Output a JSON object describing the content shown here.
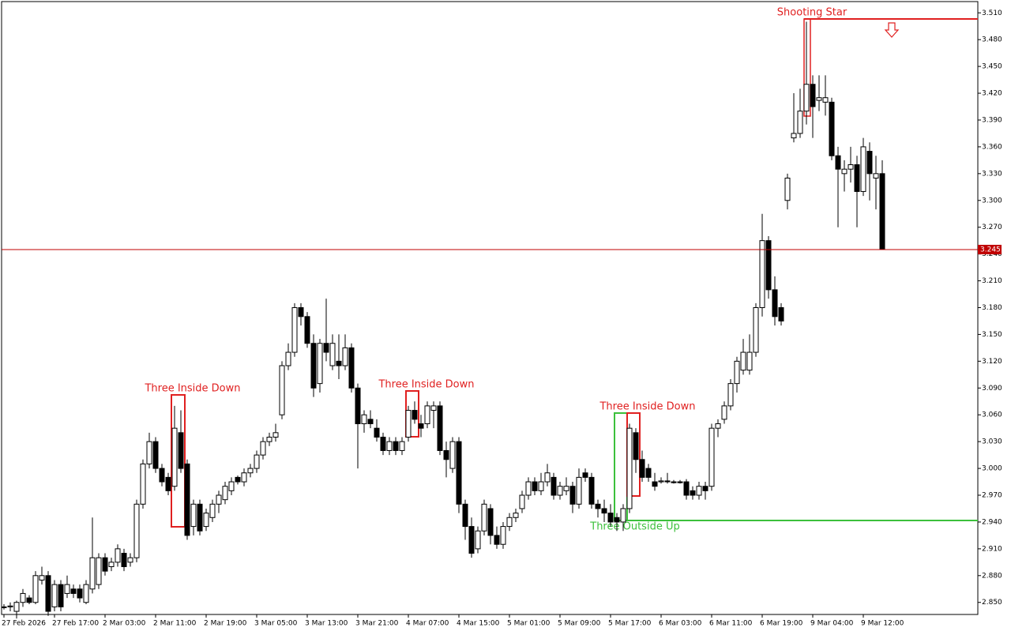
{
  "chart_data": {
    "type": "candlestick",
    "ylim": [
      2.8365,
      3.5226
    ],
    "yticks": [
      {
        "value": 2.85,
        "label": "2.850"
      },
      {
        "value": 2.88,
        "label": "2.880"
      },
      {
        "value": 2.91,
        "label": "2.910"
      },
      {
        "value": 2.94,
        "label": "2.940"
      },
      {
        "value": 2.97,
        "label": "2.970"
      },
      {
        "value": 3.0,
        "label": "3.000"
      },
      {
        "value": 3.03,
        "label": "3.030"
      },
      {
        "value": 3.06,
        "label": "3.060"
      },
      {
        "value": 3.09,
        "label": "3.090"
      },
      {
        "value": 3.12,
        "label": "3.120"
      },
      {
        "value": 3.15,
        "label": "3.150"
      },
      {
        "value": 3.18,
        "label": "3.180"
      },
      {
        "value": 3.21,
        "label": "3.210"
      },
      {
        "value": 3.24,
        "label": "3.240"
      },
      {
        "value": 3.27,
        "label": "3.270"
      },
      {
        "value": 3.3,
        "label": "3.300"
      },
      {
        "value": 3.33,
        "label": "3.330"
      },
      {
        "value": 3.36,
        "label": "3.360"
      },
      {
        "value": 3.39,
        "label": "3.390"
      },
      {
        "value": 3.42,
        "label": "3.420"
      },
      {
        "value": 3.45,
        "label": "3.450"
      },
      {
        "value": 3.48,
        "label": "3.480"
      },
      {
        "value": 3.51,
        "label": "3.510"
      }
    ],
    "x_labels": [
      "27 Feb 2026",
      "27 Feb 17:00",
      "2 Mar 03:00",
      "2 Mar 11:00",
      "2 Mar 19:00",
      "3 Mar 05:00",
      "3 Mar 13:00",
      "3 Mar 21:00",
      "4 Mar 07:00",
      "4 Mar 15:00",
      "5 Mar 01:00",
      "5 Mar 09:00",
      "5 Mar 17:00",
      "6 Mar 03:00",
      "6 Mar 11:00",
      "6 Mar 19:00",
      "9 Mar 04:00",
      "9 Mar 12:00"
    ],
    "last_price": {
      "value": 3.245,
      "label": "3.245"
    },
    "annotations": [
      {
        "text": "Three Inside Down"
      },
      {
        "text": "Three Inside Down"
      },
      {
        "text": "Three Inside Down"
      },
      {
        "text": "Three Outside Up"
      },
      {
        "text": "Shooting Star"
      }
    ],
    "ohlc": [
      [
        2.845,
        2.848,
        2.842,
        2.845
      ],
      [
        2.845,
        2.85,
        2.84,
        2.846
      ],
      [
        2.84,
        2.852,
        2.832,
        2.85
      ],
      [
        2.85,
        2.865,
        2.845,
        2.86
      ],
      [
        2.855,
        2.858,
        2.848,
        2.85
      ],
      [
        2.85,
        2.885,
        2.848,
        2.88
      ],
      [
        2.875,
        2.89,
        2.87,
        2.88
      ],
      [
        2.88,
        2.885,
        2.835,
        2.84
      ],
      [
        2.845,
        2.875,
        2.84,
        2.87
      ],
      [
        2.87,
        2.875,
        2.84,
        2.845
      ],
      [
        2.86,
        2.88,
        2.855,
        2.87
      ],
      [
        2.865,
        2.87,
        2.855,
        2.86
      ],
      [
        2.865,
        2.87,
        2.85,
        2.855
      ],
      [
        2.85,
        2.875,
        2.848,
        2.87
      ],
      [
        2.865,
        2.945,
        2.86,
        2.9
      ],
      [
        2.87,
        2.905,
        2.865,
        2.9
      ],
      [
        2.9,
        2.905,
        2.88,
        2.885
      ],
      [
        2.89,
        2.9,
        2.885,
        2.895
      ],
      [
        2.895,
        2.915,
        2.89,
        2.91
      ],
      [
        2.905,
        2.91,
        2.885,
        2.89
      ],
      [
        2.895,
        2.905,
        2.89,
        2.9
      ],
      [
        2.9,
        2.965,
        2.895,
        2.96
      ],
      [
        2.96,
        3.01,
        2.955,
        3.005
      ],
      [
        3.005,
        3.04,
        3.0,
        3.03
      ],
      [
        3.03,
        3.035,
        2.995,
        3.0
      ],
      [
        3.0,
        3.005,
        2.98,
        2.985
      ],
      [
        2.99,
        2.995,
        2.97,
        2.975
      ],
      [
        2.98,
        3.07,
        2.975,
        3.045
      ],
      [
        3.04,
        3.065,
        2.995,
        3.0
      ],
      [
        3.005,
        3.01,
        2.92,
        2.925
      ],
      [
        2.935,
        2.965,
        2.925,
        2.96
      ],
      [
        2.96,
        2.965,
        2.925,
        2.93
      ],
      [
        2.935,
        2.955,
        2.93,
        2.95
      ],
      [
        2.945,
        2.965,
        2.94,
        2.96
      ],
      [
        2.96,
        2.975,
        2.95,
        2.97
      ],
      [
        2.965,
        2.985,
        2.96,
        2.98
      ],
      [
        2.975,
        2.99,
        2.97,
        2.985
      ],
      [
        2.99,
        2.992,
        2.982,
        2.985
      ],
      [
        2.985,
        3.0,
        2.98,
        2.995
      ],
      [
        2.995,
        3.005,
        2.99,
        3.0
      ],
      [
        3.0,
        3.02,
        2.995,
        3.015
      ],
      [
        3.015,
        3.035,
        3.01,
        3.03
      ],
      [
        3.03,
        3.04,
        3.025,
        3.035
      ],
      [
        3.035,
        3.05,
        3.03,
        3.04
      ],
      [
        3.06,
        3.12,
        3.055,
        3.115
      ],
      [
        3.115,
        3.14,
        3.11,
        3.13
      ],
      [
        3.13,
        3.185,
        3.125,
        3.18
      ],
      [
        3.18,
        3.185,
        3.16,
        3.17
      ],
      [
        3.17,
        3.175,
        3.135,
        3.14
      ],
      [
        3.14,
        3.15,
        3.08,
        3.09
      ],
      [
        3.095,
        3.145,
        3.085,
        3.14
      ],
      [
        3.14,
        3.19,
        3.12,
        3.13
      ],
      [
        3.115,
        3.15,
        3.11,
        3.14
      ],
      [
        3.12,
        3.15,
        3.1,
        3.115
      ],
      [
        3.115,
        3.15,
        3.11,
        3.135
      ],
      [
        3.135,
        3.14,
        3.085,
        3.09
      ],
      [
        3.09,
        3.095,
        3.0,
        3.05
      ],
      [
        3.05,
        3.065,
        3.04,
        3.06
      ],
      [
        3.055,
        3.065,
        3.045,
        3.05
      ],
      [
        3.045,
        3.055,
        3.03,
        3.035
      ],
      [
        3.035,
        3.04,
        3.015,
        3.02
      ],
      [
        3.02,
        3.035,
        3.015,
        3.03
      ],
      [
        3.03,
        3.035,
        3.015,
        3.02
      ],
      [
        3.02,
        3.035,
        3.015,
        3.03
      ],
      [
        3.035,
        3.07,
        3.03,
        3.065
      ],
      [
        3.065,
        3.075,
        3.05,
        3.055
      ],
      [
        3.05,
        3.06,
        3.035,
        3.045
      ],
      [
        3.05,
        3.075,
        3.045,
        3.07
      ],
      [
        3.065,
        3.075,
        3.045,
        3.07
      ],
      [
        3.07,
        3.075,
        3.015,
        3.02
      ],
      [
        3.02,
        3.03,
        2.99,
        3.01
      ],
      [
        3.0,
        3.035,
        2.995,
        3.03
      ],
      [
        3.03,
        3.035,
        2.95,
        2.96
      ],
      [
        2.96,
        2.965,
        2.92,
        2.935
      ],
      [
        2.935,
        2.945,
        2.9,
        2.905
      ],
      [
        2.91,
        2.935,
        2.905,
        2.93
      ],
      [
        2.93,
        2.965,
        2.925,
        2.96
      ],
      [
        2.955,
        2.96,
        2.915,
        2.925
      ],
      [
        2.925,
        2.935,
        2.91,
        2.915
      ],
      [
        2.915,
        2.94,
        2.91,
        2.935
      ],
      [
        2.935,
        2.95,
        2.93,
        2.945
      ],
      [
        2.945,
        2.955,
        2.94,
        2.95
      ],
      [
        2.955,
        2.975,
        2.95,
        2.97
      ],
      [
        2.97,
        2.99,
        2.965,
        2.985
      ],
      [
        2.985,
        2.99,
        2.97,
        2.975
      ],
      [
        2.975,
        2.995,
        2.97,
        2.985
      ],
      [
        2.985,
        3.005,
        2.98,
        2.995
      ],
      [
        2.99,
        2.995,
        2.965,
        2.97
      ],
      [
        2.97,
        2.985,
        2.965,
        2.98
      ],
      [
        2.975,
        2.99,
        2.97,
        2.98
      ],
      [
        2.98,
        2.985,
        2.95,
        2.96
      ],
      [
        2.96,
        3.0,
        2.955,
        2.99
      ],
      [
        2.995,
        3.0,
        2.985,
        2.99
      ],
      [
        2.99,
        2.995,
        2.955,
        2.96
      ],
      [
        2.96,
        2.965,
        2.945,
        2.955
      ],
      [
        2.955,
        2.965,
        2.94,
        2.95
      ],
      [
        2.95,
        2.96,
        2.935,
        2.94
      ],
      [
        2.945,
        2.95,
        2.93,
        2.94
      ],
      [
        2.94,
        2.96,
        2.93,
        2.955
      ],
      [
        2.955,
        3.05,
        2.95,
        3.045
      ],
      [
        3.04,
        3.045,
        2.995,
        3.01
      ],
      [
        3.01,
        3.02,
        2.985,
        2.99
      ],
      [
        3.0,
        3.005,
        2.985,
        2.99
      ],
      [
        2.985,
        2.995,
        2.975,
        2.98
      ],
      [
        2.985,
        2.99,
        2.983,
        2.986
      ],
      [
        2.986,
        2.995,
        2.983,
        2.985
      ],
      [
        2.985,
        2.987,
        2.983,
        2.984
      ],
      [
        2.985,
        2.987,
        2.983,
        2.984
      ],
      [
        2.985,
        2.988,
        2.965,
        2.97
      ],
      [
        2.975,
        2.98,
        2.965,
        2.97
      ],
      [
        2.97,
        2.985,
        2.965,
        2.98
      ],
      [
        2.98,
        2.985,
        2.965,
        2.975
      ],
      [
        2.98,
        3.05,
        2.975,
        3.045
      ],
      [
        3.045,
        3.055,
        3.035,
        3.05
      ],
      [
        3.055,
        3.075,
        3.05,
        3.07
      ],
      [
        3.07,
        3.1,
        3.065,
        3.095
      ],
      [
        3.095,
        3.125,
        3.085,
        3.12
      ],
      [
        3.11,
        3.145,
        3.105,
        3.13
      ],
      [
        3.11,
        3.15,
        3.105,
        3.13
      ],
      [
        3.13,
        3.185,
        3.125,
        3.18
      ],
      [
        3.18,
        3.285,
        3.17,
        3.255
      ],
      [
        3.255,
        3.26,
        3.19,
        3.2
      ],
      [
        3.2,
        3.215,
        3.16,
        3.17
      ],
      [
        3.18,
        3.185,
        3.16,
        3.165
      ],
      [
        3.3,
        3.33,
        3.29,
        3.325
      ],
      [
        3.37,
        3.42,
        3.365,
        3.375
      ],
      [
        3.375,
        3.425,
        3.37,
        3.4
      ],
      [
        3.4,
        3.5,
        3.385,
        3.43
      ],
      [
        3.43,
        3.44,
        3.37,
        3.405
      ],
      [
        3.412,
        3.44,
        3.4,
        3.415
      ],
      [
        3.41,
        3.44,
        3.395,
        3.415
      ],
      [
        3.41,
        3.415,
        3.345,
        3.35
      ],
      [
        3.35,
        3.36,
        3.27,
        3.335
      ],
      [
        3.33,
        3.345,
        3.31,
        3.335
      ],
      [
        3.335,
        3.36,
        3.32,
        3.34
      ],
      [
        3.34,
        3.35,
        3.27,
        3.31
      ],
      [
        3.31,
        3.37,
        3.305,
        3.36
      ],
      [
        3.355,
        3.365,
        3.3,
        3.33
      ],
      [
        3.325,
        3.35,
        3.29,
        3.33
      ],
      [
        3.33,
        3.345,
        3.245,
        3.245
      ]
    ]
  }
}
